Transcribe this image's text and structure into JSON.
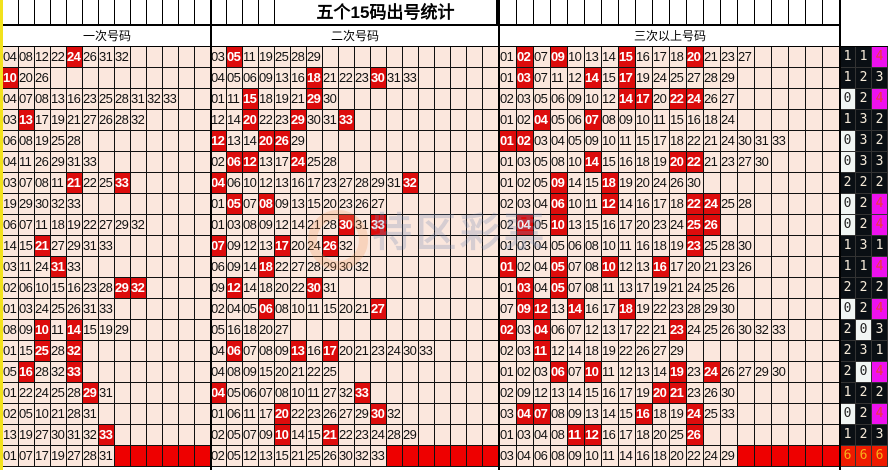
{
  "title": "五个15码出号统计",
  "watermark": "特区彩票",
  "colors": {
    "cell_bg": "#fbe7dd",
    "hit_bg": "#dd0c0c",
    "fill_bg": "#ee0000",
    "count_bg": "#0a0f14",
    "count_max_bg": "#ee11ee"
  },
  "sections": [
    {
      "label": "一次号码",
      "cols": 13,
      "rows": [
        {
          "nums": [
            "04",
            "08",
            "12",
            "22",
            "24",
            "26",
            "31",
            "32"
          ],
          "hits": [
            "24"
          ]
        },
        {
          "nums": [
            "10",
            "20",
            "26"
          ],
          "hits": [
            "10"
          ]
        },
        {
          "nums": [
            "04",
            "07",
            "08",
            "13",
            "16",
            "23",
            "25",
            "28",
            "31",
            "32",
            "33"
          ],
          "hits": []
        },
        {
          "nums": [
            "03",
            "13",
            "17",
            "19",
            "21",
            "27",
            "26",
            "28",
            "32"
          ],
          "hits": [
            "13"
          ]
        },
        {
          "nums": [
            "06",
            "08",
            "19",
            "25",
            "28"
          ],
          "hits": []
        },
        {
          "nums": [
            "04",
            "11",
            "26",
            "29",
            "31",
            "33"
          ],
          "hits": []
        },
        {
          "nums": [
            "03",
            "07",
            "08",
            "11",
            "21",
            "22",
            "25",
            "33"
          ],
          "hits": [
            "21",
            "33"
          ]
        },
        {
          "nums": [
            "19",
            "29",
            "30",
            "32",
            "33"
          ],
          "hits": []
        },
        {
          "nums": [
            "06",
            "07",
            "11",
            "18",
            "19",
            "22",
            "27",
            "29",
            "32"
          ],
          "hits": []
        },
        {
          "nums": [
            "14",
            "15",
            "21",
            "27",
            "29",
            "31",
            "33"
          ],
          "hits": [
            "21"
          ]
        },
        {
          "nums": [
            "03",
            "11",
            "24",
            "31",
            "33"
          ],
          "hits": [
            "31"
          ]
        },
        {
          "nums": [
            "02",
            "06",
            "10",
            "15",
            "16",
            "23",
            "28",
            "29",
            "32"
          ],
          "hits": [
            "29",
            "32"
          ]
        },
        {
          "nums": [
            "01",
            "03",
            "24",
            "25",
            "26",
            "31",
            "33"
          ],
          "hits": []
        },
        {
          "nums": [
            "08",
            "09",
            "10",
            "11",
            "14",
            "15",
            "19",
            "29"
          ],
          "hits": [
            "10",
            "14"
          ]
        },
        {
          "nums": [
            "01",
            "15",
            "25",
            "28",
            "32"
          ],
          "hits": [
            "25",
            "32"
          ]
        },
        {
          "nums": [
            "05",
            "16",
            "28",
            "32",
            "33"
          ],
          "hits": [
            "16",
            "33"
          ]
        },
        {
          "nums": [
            "01",
            "22",
            "24",
            "25",
            "28",
            "29",
            "31"
          ],
          "hits": [
            "29"
          ]
        },
        {
          "nums": [
            "02",
            "05",
            "10",
            "21",
            "28",
            "31"
          ],
          "hits": []
        },
        {
          "nums": [
            "13",
            "19",
            "27",
            "30",
            "31",
            "32",
            "33"
          ],
          "hits": [
            "33"
          ]
        },
        {
          "nums": [
            "01",
            "07",
            "17",
            "19",
            "27",
            "28",
            "31"
          ],
          "hits": [],
          "fill": true
        }
      ]
    },
    {
      "label": "二次号码",
      "cols": 18,
      "rows": [
        {
          "nums": [
            "03",
            "05",
            "11",
            "19",
            "25",
            "28",
            "29"
          ],
          "hits": [
            "05"
          ]
        },
        {
          "nums": [
            "04",
            "05",
            "06",
            "09",
            "13",
            "16",
            "18",
            "21",
            "22",
            "23",
            "30",
            "31",
            "33"
          ],
          "hits": [
            "18",
            "30"
          ]
        },
        {
          "nums": [
            "01",
            "11",
            "15",
            "18",
            "19",
            "21",
            "29",
            "30"
          ],
          "hits": [
            "15",
            "29"
          ]
        },
        {
          "nums": [
            "12",
            "14",
            "20",
            "22",
            "23",
            "29",
            "30",
            "31",
            "33"
          ],
          "hits": [
            "20",
            "29",
            "33"
          ]
        },
        {
          "nums": [
            "12",
            "13",
            "14",
            "20",
            "26",
            "29"
          ],
          "hits": [
            "12",
            "20",
            "26"
          ]
        },
        {
          "nums": [
            "02",
            "06",
            "12",
            "13",
            "17",
            "24",
            "25",
            "28"
          ],
          "hits": [
            "06",
            "12",
            "24"
          ]
        },
        {
          "nums": [
            "04",
            "06",
            "10",
            "12",
            "13",
            "16",
            "17",
            "23",
            "27",
            "28",
            "29",
            "31",
            "32"
          ],
          "hits": [
            "04",
            "32"
          ]
        },
        {
          "nums": [
            "01",
            "05",
            "07",
            "08",
            "09",
            "13",
            "15",
            "20",
            "23",
            "26",
            "27"
          ],
          "hits": [
            "05",
            "08"
          ]
        },
        {
          "nums": [
            "01",
            "03",
            "08",
            "09",
            "12",
            "14",
            "21",
            "28",
            "30",
            "31",
            "33"
          ],
          "hits": [
            "30",
            "33"
          ]
        },
        {
          "nums": [
            "07",
            "09",
            "12",
            "13",
            "17",
            "20",
            "24",
            "26",
            "32"
          ],
          "hits": [
            "07",
            "17",
            "26"
          ]
        },
        {
          "nums": [
            "06",
            "09",
            "14",
            "18",
            "22",
            "27",
            "28",
            "29",
            "30",
            "32"
          ],
          "hits": [
            "18"
          ]
        },
        {
          "nums": [
            "09",
            "12",
            "14",
            "18",
            "20",
            "22",
            "30",
            "31"
          ],
          "hits": [
            "12",
            "30"
          ]
        },
        {
          "nums": [
            "02",
            "04",
            "05",
            "06",
            "08",
            "10",
            "11",
            "15",
            "20",
            "21",
            "27"
          ],
          "hits": [
            "06",
            "27"
          ]
        },
        {
          "nums": [
            "05",
            "16",
            "18",
            "20",
            "27"
          ],
          "hits": []
        },
        {
          "nums": [
            "04",
            "06",
            "07",
            "08",
            "09",
            "13",
            "16",
            "17",
            "20",
            "21",
            "23",
            "24",
            "30",
            "33"
          ],
          "hits": [
            "06",
            "13",
            "17"
          ]
        },
        {
          "nums": [
            "04",
            "08",
            "09",
            "15",
            "20",
            "21",
            "22",
            "25"
          ],
          "hits": []
        },
        {
          "nums": [
            "04",
            "05",
            "06",
            "07",
            "08",
            "10",
            "11",
            "27",
            "32",
            "33"
          ],
          "hits": [
            "04",
            "33"
          ]
        },
        {
          "nums": [
            "01",
            "06",
            "11",
            "17",
            "20",
            "22",
            "23",
            "26",
            "27",
            "29",
            "30",
            "32"
          ],
          "hits": [
            "20",
            "30"
          ]
        },
        {
          "nums": [
            "02",
            "05",
            "07",
            "09",
            "10",
            "14",
            "15",
            "21",
            "22",
            "23",
            "24",
            "28",
            "29"
          ],
          "hits": [
            "10",
            "21"
          ]
        },
        {
          "nums": [
            "02",
            "05",
            "12",
            "13",
            "15",
            "21",
            "25",
            "26",
            "30",
            "32",
            "33"
          ],
          "hits": [],
          "fill": true
        }
      ]
    },
    {
      "label": "三次以上号码",
      "cols": 20,
      "rows": [
        {
          "nums": [
            "01",
            "02",
            "07",
            "09",
            "10",
            "13",
            "14",
            "15",
            "16",
            "17",
            "18",
            "20",
            "21",
            "23",
            "27"
          ],
          "hits": [
            "02",
            "09",
            "15",
            "20"
          ]
        },
        {
          "nums": [
            "01",
            "03",
            "07",
            "11",
            "12",
            "14",
            "15",
            "17",
            "19",
            "24",
            "25",
            "27",
            "28",
            "29"
          ],
          "hits": [
            "03",
            "14",
            "17"
          ]
        },
        {
          "nums": [
            "02",
            "03",
            "05",
            "06",
            "09",
            "10",
            "12",
            "14",
            "17",
            "20",
            "22",
            "24",
            "26",
            "27"
          ],
          "hits": [
            "14",
            "17",
            "22",
            "24"
          ]
        },
        {
          "nums": [
            "01",
            "02",
            "04",
            "05",
            "06",
            "07",
            "08",
            "09",
            "10",
            "11",
            "15",
            "16",
            "18",
            "24"
          ],
          "hits": [
            "04",
            "07"
          ]
        },
        {
          "nums": [
            "01",
            "02",
            "03",
            "04",
            "05",
            "09",
            "10",
            "11",
            "15",
            "17",
            "18",
            "22",
            "21",
            "24",
            "30",
            "31",
            "33"
          ],
          "hits": [
            "01",
            "02"
          ]
        },
        {
          "nums": [
            "01",
            "03",
            "05",
            "08",
            "10",
            "14",
            "15",
            "16",
            "18",
            "19",
            "20",
            "22",
            "21",
            "23",
            "27",
            "30"
          ],
          "hits": [
            "14",
            "20",
            "22"
          ]
        },
        {
          "nums": [
            "01",
            "02",
            "05",
            "09",
            "14",
            "15",
            "18",
            "19",
            "20",
            "24",
            "26",
            "30"
          ],
          "hits": [
            "09",
            "18"
          ]
        },
        {
          "nums": [
            "02",
            "03",
            "04",
            "06",
            "10",
            "11",
            "12",
            "14",
            "16",
            "17",
            "18",
            "22",
            "24",
            "25",
            "28"
          ],
          "hits": [
            "06",
            "12",
            "22",
            "24"
          ]
        },
        {
          "nums": [
            "02",
            "04",
            "05",
            "10",
            "13",
            "15",
            "16",
            "17",
            "20",
            "23",
            "24",
            "25",
            "26"
          ],
          "hits": [
            "04",
            "10",
            "25",
            "26"
          ]
        },
        {
          "nums": [
            "01",
            "03",
            "04",
            "05",
            "06",
            "08",
            "10",
            "11",
            "16",
            "18",
            "19",
            "23",
            "25",
            "28",
            "30"
          ],
          "hits": [
            "23"
          ]
        },
        {
          "nums": [
            "01",
            "02",
            "04",
            "05",
            "07",
            "08",
            "10",
            "12",
            "13",
            "16",
            "17",
            "20",
            "21",
            "23",
            "26"
          ],
          "hits": [
            "01",
            "05",
            "10",
            "16"
          ]
        },
        {
          "nums": [
            "01",
            "03",
            "04",
            "05",
            "07",
            "08",
            "11",
            "13",
            "17",
            "19",
            "21",
            "24",
            "25",
            "26"
          ],
          "hits": [
            "03",
            "05"
          ]
        },
        {
          "nums": [
            "07",
            "09",
            "12",
            "13",
            "14",
            "16",
            "17",
            "18",
            "19",
            "22",
            "23",
            "28",
            "29",
            "30"
          ],
          "hits": [
            "09",
            "12",
            "14",
            "18"
          ]
        },
        {
          "nums": [
            "02",
            "03",
            "04",
            "06",
            "07",
            "12",
            "13",
            "17",
            "22",
            "21",
            "23",
            "24",
            "25",
            "26",
            "30",
            "32",
            "33"
          ],
          "hits": [
            "02",
            "04",
            "23"
          ]
        },
        {
          "nums": [
            "02",
            "03",
            "11",
            "12",
            "14",
            "18",
            "19",
            "22",
            "26",
            "27",
            "29"
          ],
          "hits": [
            "11"
          ]
        },
        {
          "nums": [
            "01",
            "02",
            "03",
            "06",
            "07",
            "10",
            "11",
            "12",
            "13",
            "14",
            "19",
            "23",
            "24",
            "26",
            "27",
            "29",
            "30"
          ],
          "hits": [
            "06",
            "10",
            "19",
            "24"
          ]
        },
        {
          "nums": [
            "02",
            "09",
            "12",
            "13",
            "14",
            "15",
            "16",
            "17",
            "19",
            "20",
            "21",
            "23",
            "26",
            "30"
          ],
          "hits": [
            "20",
            "21"
          ]
        },
        {
          "nums": [
            "03",
            "04",
            "07",
            "08",
            "09",
            "13",
            "14",
            "15",
            "16",
            "18",
            "19",
            "24",
            "25",
            "33"
          ],
          "hits": [
            "04",
            "07",
            "16",
            "24"
          ]
        },
        {
          "nums": [
            "01",
            "03",
            "04",
            "08",
            "11",
            "12",
            "16",
            "17",
            "18",
            "20",
            "25",
            "26"
          ],
          "hits": [
            "11",
            "12",
            "26"
          ]
        },
        {
          "nums": [
            "03",
            "04",
            "06",
            "08",
            "09",
            "10",
            "11",
            "14",
            "16",
            "18",
            "20",
            "22",
            "24",
            "29"
          ],
          "hits": [],
          "fill": true
        }
      ]
    }
  ],
  "counts": [
    [
      1,
      1,
      4
    ],
    [
      1,
      2,
      3
    ],
    [
      0,
      2,
      4
    ],
    [
      1,
      3,
      2
    ],
    [
      0,
      3,
      2
    ],
    [
      0,
      3,
      3
    ],
    [
      2,
      2,
      2
    ],
    [
      0,
      2,
      4
    ],
    [
      0,
      2,
      4
    ],
    [
      1,
      3,
      1
    ],
    [
      1,
      1,
      4
    ],
    [
      2,
      2,
      2
    ],
    [
      0,
      2,
      4
    ],
    [
      2,
      0,
      3
    ],
    [
      2,
      3,
      1
    ],
    [
      2,
      0,
      4
    ],
    [
      1,
      2,
      2
    ],
    [
      0,
      2,
      4
    ],
    [
      1,
      2,
      3
    ],
    [
      6,
      6,
      6
    ]
  ]
}
